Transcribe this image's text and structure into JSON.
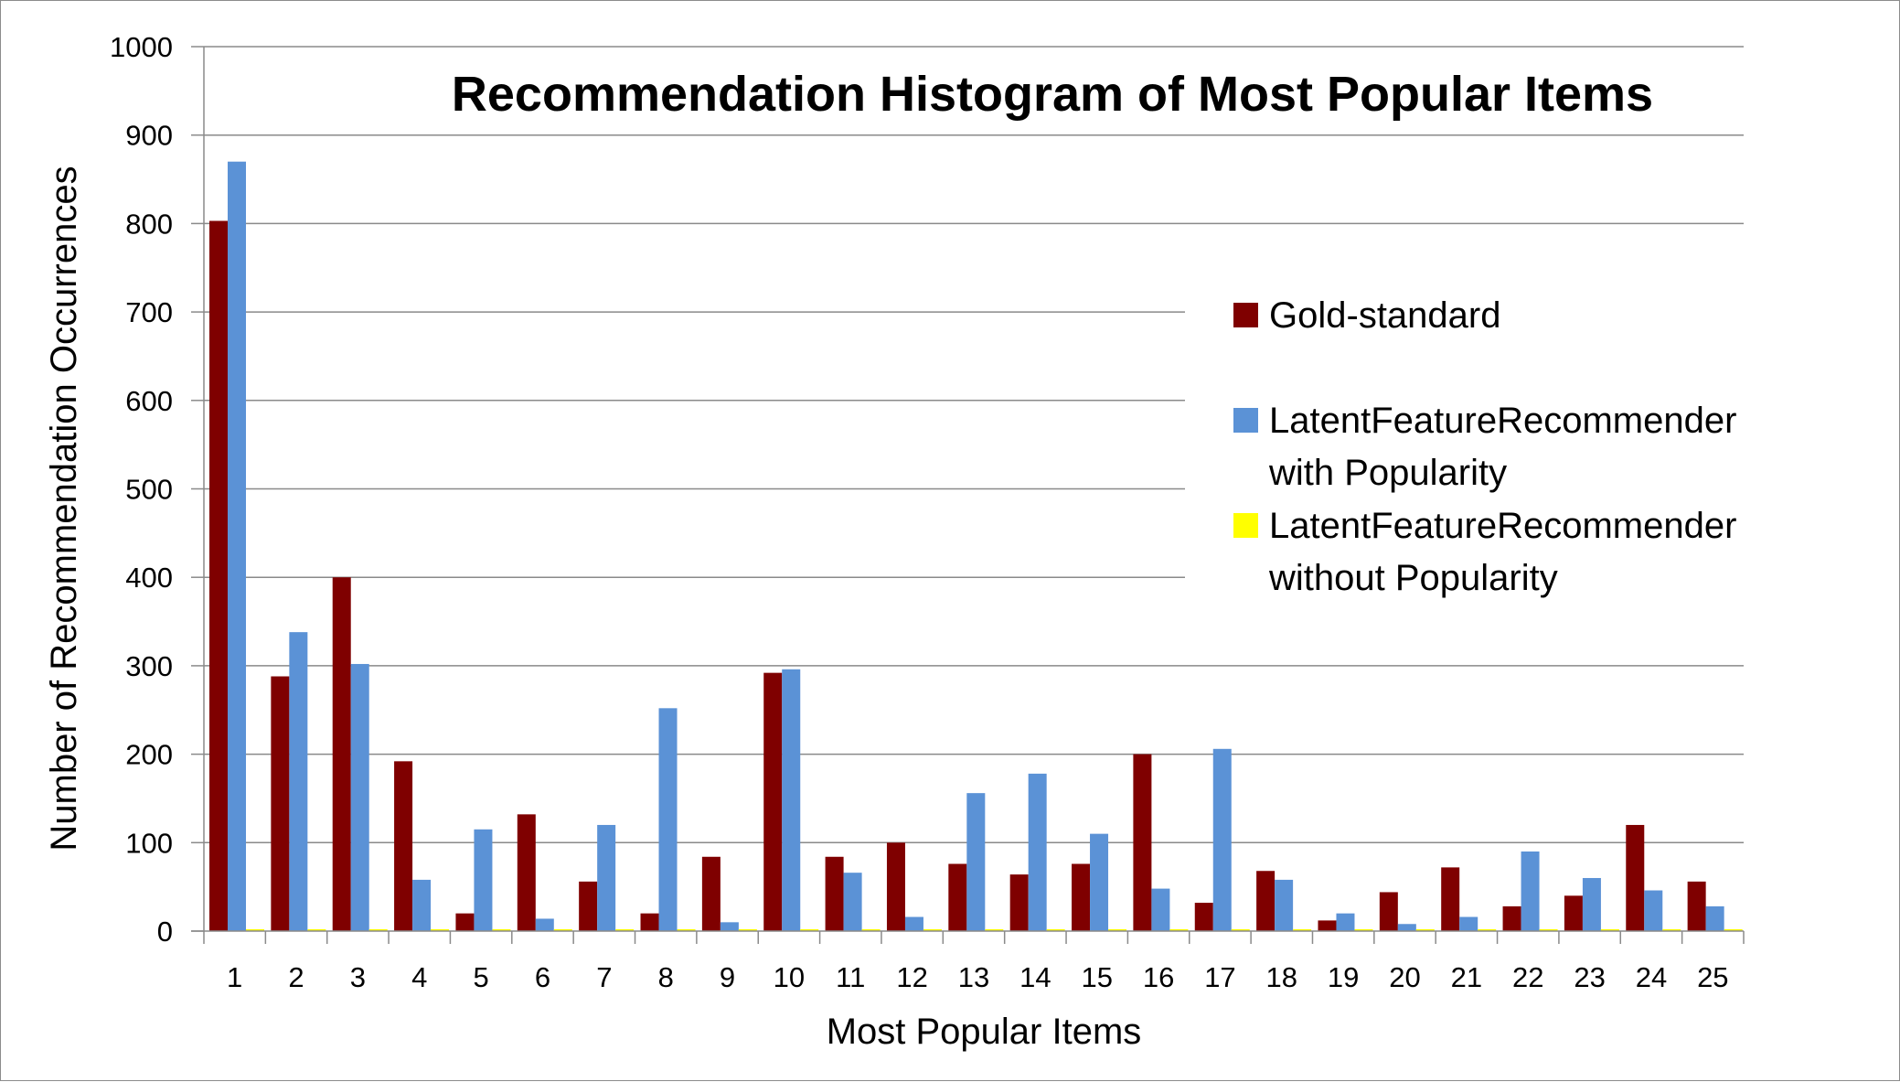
{
  "chart_data": {
    "type": "bar",
    "title": "Recommendation Histogram of Most Popular Items",
    "xlabel": "Most Popular Items",
    "ylabel": "Number of Recommendation Occurrences",
    "ylim": [
      0,
      1000
    ],
    "yticks": [
      0,
      100,
      200,
      300,
      400,
      500,
      600,
      700,
      800,
      900,
      1000
    ],
    "grid": true,
    "legend_placement": "right",
    "categories": [
      "1",
      "2",
      "3",
      "4",
      "5",
      "6",
      "7",
      "8",
      "9",
      "10",
      "11",
      "12",
      "13",
      "14",
      "15",
      "16",
      "17",
      "18",
      "19",
      "20",
      "21",
      "22",
      "23",
      "24",
      "25"
    ],
    "series": [
      {
        "name": "Gold-standard",
        "legend_lines": [
          "Gold-standard"
        ],
        "color": "#7f0000",
        "values": [
          803,
          288,
          400,
          192,
          20,
          132,
          56,
          20,
          84,
          292,
          84,
          100,
          76,
          64,
          76,
          200,
          32,
          68,
          12,
          44,
          72,
          28,
          40,
          120,
          56
        ]
      },
      {
        "name": "LatentFeatureRecommender with Popularity",
        "legend_lines": [
          "LatentFeatureRecommender",
          "with Popularity"
        ],
        "color": "#5b92d6",
        "values": [
          870,
          338,
          302,
          58,
          115,
          14,
          120,
          252,
          10,
          296,
          66,
          16,
          156,
          178,
          110,
          48,
          206,
          58,
          20,
          8,
          16,
          90,
          60,
          46,
          28
        ]
      },
      {
        "name": "LatentFeatureRecommender without Popularity",
        "legend_lines": [
          "LatentFeatureRecommender",
          "without Popularity"
        ],
        "color": "#ffff00",
        "values": [
          0,
          0,
          0,
          0,
          0,
          0,
          0,
          0,
          0,
          0,
          0,
          0,
          0,
          0,
          0,
          0,
          0,
          0,
          0,
          0,
          0,
          0,
          0,
          0,
          0
        ]
      }
    ]
  }
}
